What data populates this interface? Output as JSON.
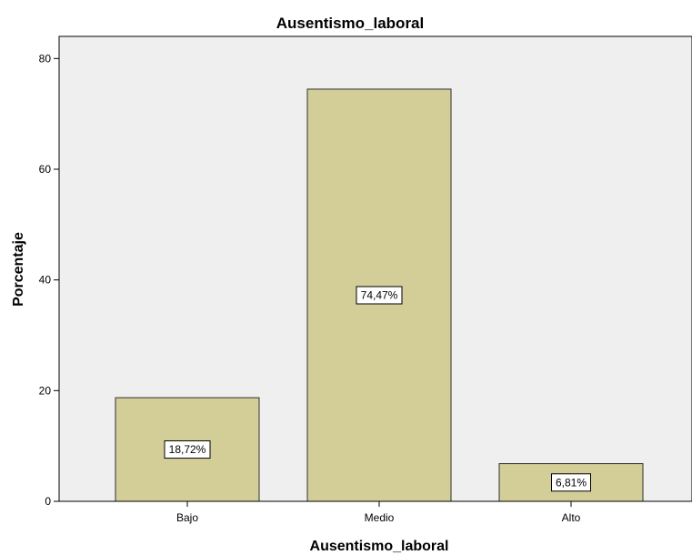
{
  "chart_data": {
    "type": "bar",
    "title": "Ausentismo_laboral",
    "xlabel": "Ausentismo_laboral",
    "ylabel": "Porcentaje",
    "categories": [
      "Bajo",
      "Medio",
      "Alto"
    ],
    "values": [
      18.72,
      74.47,
      6.81
    ],
    "data_labels": [
      "18,72%",
      "74,47%",
      "6,81%"
    ],
    "ylim": [
      0,
      84
    ],
    "yticks": [
      0,
      20,
      40,
      60,
      80
    ],
    "ytick_labels": [
      "0",
      "20",
      "40",
      "60",
      "80"
    ],
    "grid": false,
    "colors": {
      "plot_background": "#efefef",
      "bar_fill": "#d3ce97",
      "bar_stroke": "#2f2f2f"
    }
  }
}
